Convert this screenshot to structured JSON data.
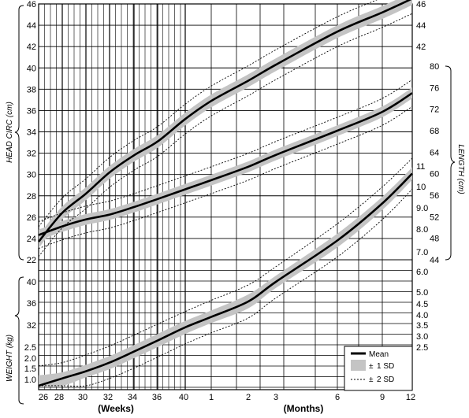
{
  "chart_data": {
    "type": "line",
    "x_axis": {
      "label_weeks": "(Weeks)",
      "label_months": "(Months)",
      "week_ticks": [
        "26",
        "28",
        "30",
        "32",
        "34",
        "36",
        "40"
      ],
      "month_ticks": [
        "1",
        "2",
        "3",
        "6",
        "9",
        "12"
      ]
    },
    "head_circ_axis": {
      "label": "HEAD CIRC (cm)",
      "ticks": [
        "22",
        "24",
        "26",
        "28",
        "30",
        "32",
        "34",
        "36",
        "38",
        "40",
        "42",
        "44",
        "46"
      ],
      "right_ticks": [
        "42",
        "44",
        "46"
      ]
    },
    "length_axis": {
      "label": "LENGTH (cm)",
      "ticks": [
        "44",
        "48",
        "52",
        "56",
        "60",
        "64",
        "68",
        "72",
        "76",
        "80"
      ]
    },
    "weight_axis": {
      "label": "WEIGHT (kg)",
      "left_ticks": [
        "1.0",
        "1.5",
        "2.0",
        "2.5",
        "32",
        "36",
        "40"
      ],
      "right_ticks": [
        "2.5",
        "3.0",
        "3.5",
        "4.0",
        "4.5",
        "5.0",
        "6.0",
        "7.0",
        "8.0",
        "9.0",
        "10",
        "11"
      ]
    },
    "series": [
      {
        "name": "Head circumference",
        "x": [
          "26 wk",
          "28 wk",
          "30 wk",
          "32 wk",
          "34 wk",
          "36 wk",
          "40 wk",
          "1 mo",
          "2 mo",
          "3 mo",
          "6 mo",
          "9 mo",
          "12 mo"
        ],
        "mean": [
          23.7,
          26.4,
          28.2,
          30.2,
          31.8,
          33.1,
          35.2,
          36.9,
          38.8,
          40.3,
          43.4,
          45.2,
          46.5
        ],
        "sd1": 0.6,
        "sd2": 1.4
      },
      {
        "name": "Length",
        "x": [
          "26 wk",
          "28 wk",
          "30 wk",
          "32 wk",
          "34 wk",
          "36 wk",
          "40 wk",
          "1 mo",
          "2 mo",
          "3 mo",
          "6 mo",
          "9 mo",
          "12 mo"
        ],
        "mean": [
          48.6,
          50.2,
          51.5,
          52.4,
          53.8,
          55.3,
          57.1,
          58.8,
          61.3,
          63.5,
          68.0,
          71.5,
          75.0
        ],
        "sd1": 1.0,
        "sd2": 2.5
      },
      {
        "name": "Weight",
        "x": [
          "26 wk",
          "28 wk",
          "30 wk",
          "32 wk",
          "34 wk",
          "36 wk",
          "40 wk",
          "1 mo",
          "2 mo",
          "3 mo",
          "6 mo",
          "9 mo",
          "12 mo"
        ],
        "mean": [
          0.9,
          1.05,
          1.4,
          1.8,
          2.3,
          2.8,
          3.4,
          3.9,
          4.6,
          5.5,
          7.5,
          9.2,
          10.6
        ],
        "sd1": 0.3,
        "sd2": 0.75
      }
    ],
    "legend": {
      "position": "bottom-right",
      "items": [
        {
          "key": "mean",
          "label": "Mean"
        },
        {
          "key": "sd1",
          "label": "1 SD",
          "prefix": "±"
        },
        {
          "key": "sd2",
          "label": "2 SD",
          "prefix": "±"
        }
      ]
    },
    "grid": true,
    "colors": {
      "band": "#c4c4c4",
      "line": "#000000",
      "grid": "#000000"
    }
  }
}
